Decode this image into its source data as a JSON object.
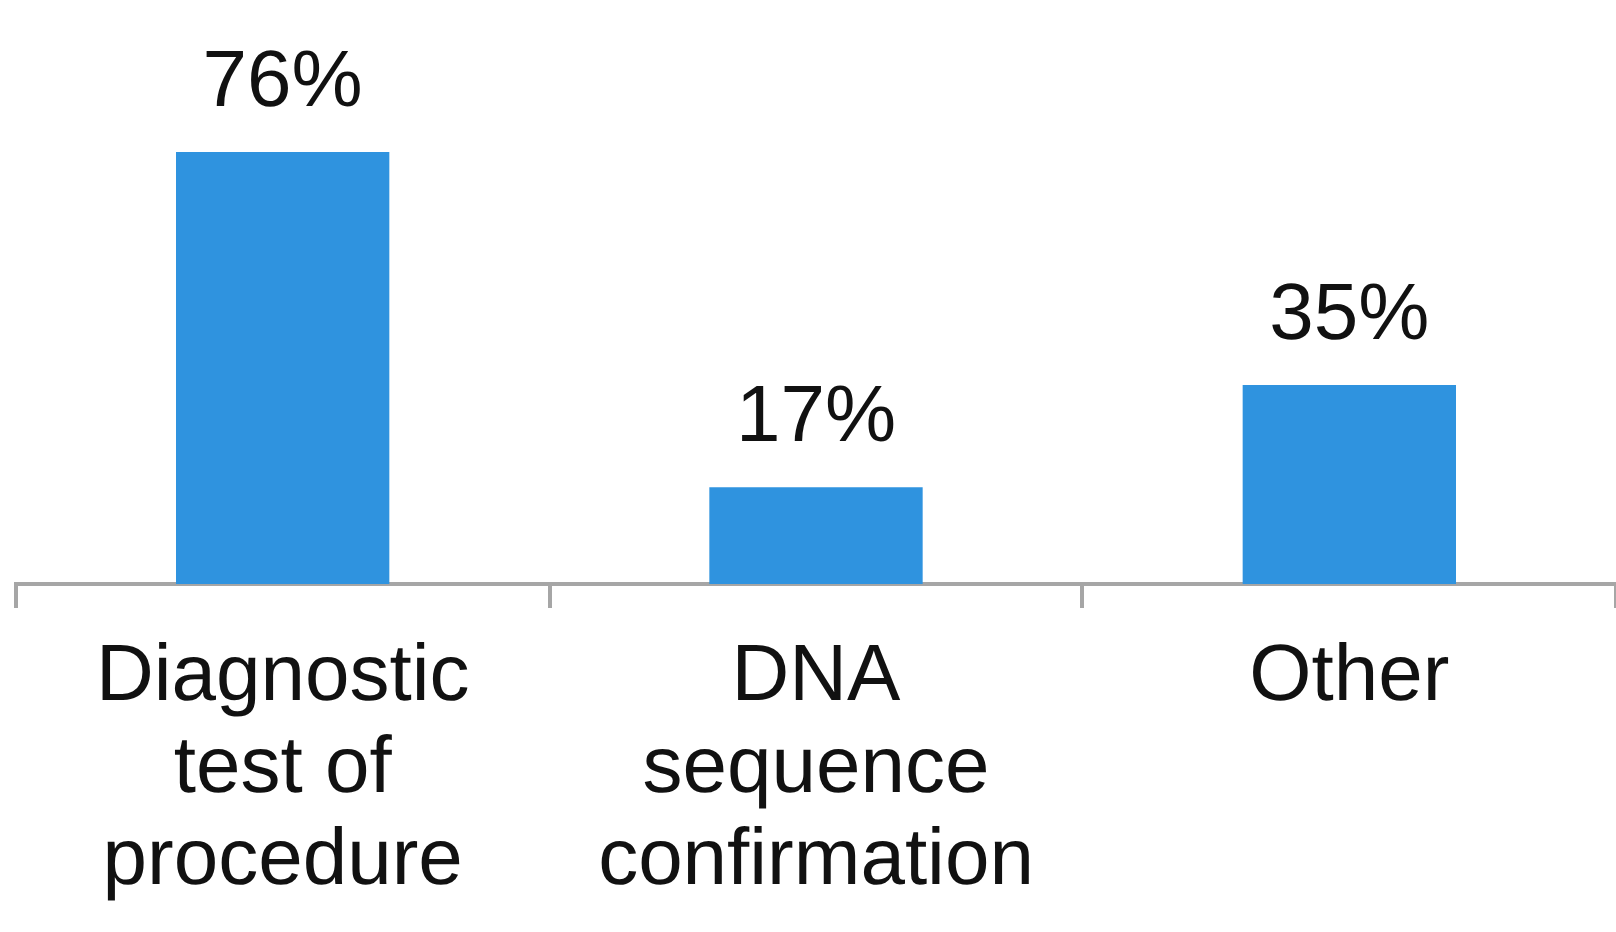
{
  "chart_data": {
    "type": "bar",
    "categories": [
      "Diagnostic test of procedure",
      "DNA sequence confirmation",
      "Other"
    ],
    "values": [
      76,
      17,
      35
    ],
    "color": "#2f93df",
    "value_labels": [
      "76%",
      "17%",
      "35%"
    ],
    "grid": false,
    "legend": false
  }
}
